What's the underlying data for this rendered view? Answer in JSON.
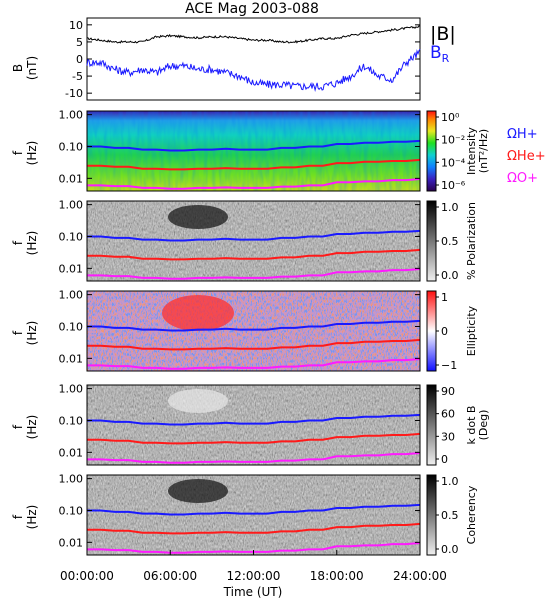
{
  "title": "ACE Mag 2003-088",
  "colors": {
    "bmag": "#000000",
    "br": "#1a1aff",
    "h": "#1a1aff",
    "he": "#ff1a1a",
    "o": "#ff1aff",
    "ylabel_b": "#000000"
  },
  "chart_data": [
    {
      "type": "line",
      "panel": "field",
      "ylabel_main": "B",
      "ylabel_unit": "(nT)",
      "ylim": [
        -12,
        12
      ],
      "yticks": [
        "10",
        "5",
        "0",
        "-5",
        "-10"
      ],
      "ytick_values": [
        10,
        5,
        0,
        -5,
        -10
      ],
      "x_hours": [
        0,
        1,
        2,
        3,
        4,
        5,
        6,
        7,
        8,
        9,
        10,
        11,
        12,
        13,
        14,
        15,
        16,
        17,
        18,
        19,
        20,
        21,
        22,
        23,
        24
      ],
      "legend": [
        "|B|",
        "B_R"
      ],
      "series": [
        {
          "name": "|B|",
          "key": "bmag",
          "values": [
            6,
            5.5,
            5,
            5,
            5,
            6.5,
            6.8,
            6.5,
            6.2,
            6.5,
            6.5,
            6,
            5.5,
            5.5,
            5,
            5,
            5.5,
            6,
            6,
            7,
            7.5,
            8,
            8.5,
            9,
            9.5
          ]
        },
        {
          "name": "B_R",
          "key": "br",
          "values": [
            -1,
            -1,
            -3,
            -4,
            -3,
            -4,
            -2,
            -2,
            -3,
            -3,
            -4,
            -5,
            -7,
            -7.5,
            -7.5,
            -8,
            -8,
            -8,
            -7,
            -5,
            -2,
            -5,
            -6,
            -1,
            2
          ]
        }
      ]
    },
    {
      "type": "heatmap",
      "panel": "intensity",
      "ylabel_main": "f",
      "ylabel_unit": "(Hz)",
      "yticks": [
        "1.00",
        "0.10",
        "0.01"
      ],
      "colorbar_label_1": "Intensity",
      "colorbar_label_2": "(nT²/Hz)",
      "colorbar_ticks": [
        "10⁰",
        "10⁻²",
        "10⁻⁴",
        "10⁻⁶"
      ],
      "legend": [
        "ΩH+",
        "ΩHe+",
        "ΩO+"
      ]
    },
    {
      "type": "heatmap",
      "panel": "polarization",
      "ylabel_main": "f",
      "ylabel_unit": "(Hz)",
      "yticks": [
        "1.00",
        "0.10",
        "0.01"
      ],
      "colorbar_label_1": "% Polarization",
      "colorbar_label_2": "",
      "colorbar_ticks": [
        "1.0",
        "0.5",
        "0.0"
      ]
    },
    {
      "type": "heatmap",
      "panel": "ellipticity",
      "ylabel_main": "f",
      "ylabel_unit": "(Hz)",
      "yticks": [
        "1.00",
        "0.10",
        "0.01"
      ],
      "colorbar_label_1": "Ellipticity",
      "colorbar_label_2": "",
      "colorbar_ticks": [
        "1",
        "0",
        "−1"
      ]
    },
    {
      "type": "heatmap",
      "panel": "kdotb",
      "ylabel_main": "f",
      "ylabel_unit": "(Hz)",
      "yticks": [
        "1.00",
        "0.10",
        "0.01"
      ],
      "colorbar_label_1": "k dot B",
      "colorbar_label_2": "(Deg)",
      "colorbar_ticks": [
        "90",
        "60",
        "30",
        "0"
      ]
    },
    {
      "type": "heatmap",
      "panel": "coherency",
      "ylabel_main": "f",
      "ylabel_unit": "(Hz)",
      "yticks": [
        "1.00",
        "0.10",
        "0.01"
      ],
      "colorbar_label_1": "Coherency",
      "colorbar_label_2": "",
      "colorbar_ticks": [
        "1.0",
        "0.5",
        "0.0"
      ]
    }
  ],
  "gyro_lines": {
    "x_hours": [
      0,
      1,
      2,
      3,
      4,
      5,
      6,
      7,
      8,
      9,
      10,
      11,
      12,
      13,
      14,
      15,
      16,
      17,
      18,
      19,
      20,
      21,
      22,
      23,
      24
    ],
    "h_hz": [
      0.1,
      0.1,
      0.09,
      0.09,
      0.08,
      0.08,
      0.075,
      0.075,
      0.08,
      0.08,
      0.085,
      0.08,
      0.08,
      0.08,
      0.09,
      0.09,
      0.1,
      0.1,
      0.12,
      0.12,
      0.13,
      0.13,
      0.14,
      0.14,
      0.15
    ],
    "he_hz": [
      0.025,
      0.025,
      0.023,
      0.023,
      0.02,
      0.02,
      0.019,
      0.019,
      0.02,
      0.02,
      0.021,
      0.02,
      0.02,
      0.02,
      0.022,
      0.022,
      0.025,
      0.025,
      0.03,
      0.03,
      0.033,
      0.033,
      0.035,
      0.035,
      0.038
    ],
    "o_hz": [
      0.006,
      0.006,
      0.0057,
      0.0057,
      0.005,
      0.005,
      0.0047,
      0.0047,
      0.005,
      0.005,
      0.0052,
      0.005,
      0.005,
      0.005,
      0.0055,
      0.0055,
      0.006,
      0.006,
      0.0075,
      0.0075,
      0.008,
      0.008,
      0.0088,
      0.0088,
      0.0095
    ]
  },
  "x_axis": {
    "title": "Time (UT)",
    "ticks": [
      "00:00:00",
      "06:00:00",
      "12:00:00",
      "18:00:00",
      "24:00:00"
    ],
    "tick_hours": [
      0,
      6,
      12,
      18,
      24
    ]
  }
}
